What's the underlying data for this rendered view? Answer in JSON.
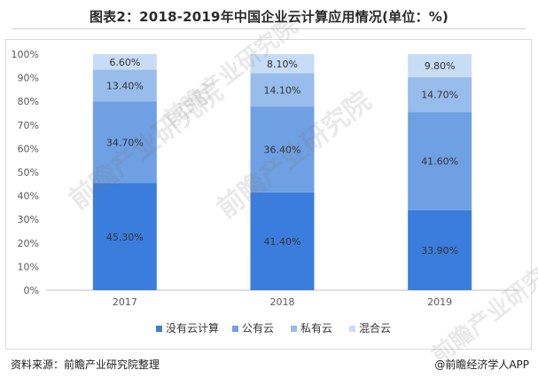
{
  "title": "图表2：2018-2019年中国企业云计算应用情况(单位：%)",
  "footer": {
    "source": "资料来源：前瞻产业研究院整理",
    "credit": "@前瞻经济学人APP"
  },
  "watermark_text": "前瞻产业研究院",
  "chart_data": {
    "type": "bar",
    "stacked": true,
    "categories": [
      "2017",
      "2018",
      "2019"
    ],
    "series": [
      {
        "name": "没有云计算",
        "color": "#3b7ddd",
        "values": [
          45.3,
          41.4,
          33.9
        ]
      },
      {
        "name": "公有云",
        "color": "#6fa0e3",
        "values": [
          34.7,
          36.4,
          41.6
        ]
      },
      {
        "name": "私有云",
        "color": "#98bdec",
        "values": [
          13.4,
          14.1,
          14.7
        ]
      },
      {
        "name": "混合云",
        "color": "#c8dcf6",
        "values": [
          6.6,
          8.1,
          9.8
        ]
      }
    ],
    "data_labels": [
      [
        "45.30%",
        "41.40%",
        "33.90%"
      ],
      [
        "34.70%",
        "36.40%",
        "41.60%"
      ],
      [
        "13.40%",
        "14.10%",
        "14.70%"
      ],
      [
        "6.60%",
        "8.10%",
        "9.80%"
      ]
    ],
    "y_ticks": [
      "0%",
      "10%",
      "20%",
      "30%",
      "40%",
      "50%",
      "60%",
      "70%",
      "80%",
      "90%",
      "100%"
    ],
    "ylim": [
      0,
      100
    ],
    "grid": false,
    "legend_position": "bottom"
  }
}
